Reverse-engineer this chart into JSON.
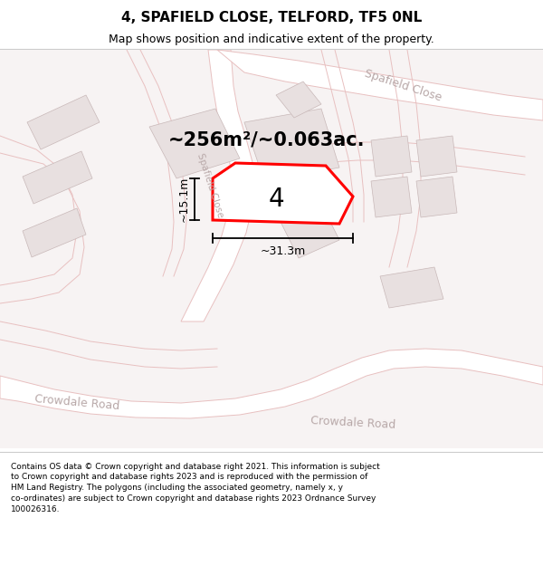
{
  "title": "4, SPAFIELD CLOSE, TELFORD, TF5 0NL",
  "subtitle": "Map shows position and indicative extent of the property.",
  "area_label": "~256m²/~0.063ac.",
  "plot_number": "4",
  "width_label": "~31.3m",
  "height_label": "~15.1m",
  "footer": "Contains OS data © Crown copyright and database right 2021. This information is subject to Crown copyright and database rights 2023 and is reproduced with the permission of HM Land Registry. The polygons (including the associated geometry, namely x, y co-ordinates) are subject to Crown copyright and database rights 2023 Ordnance Survey 100026316.",
  "map_bg": "#f7f3f3",
  "road_color": "#ffffff",
  "road_outline": "#e8c0c0",
  "building_color": "#e8e0e0",
  "building_outline": "#c8b8b8",
  "plot_fill": "#ffffff",
  "plot_outline": "#ff0000",
  "label_color": "#b8a8a8",
  "title_color": "#000000",
  "footer_color": "#000000",
  "figsize": [
    6.0,
    6.25
  ],
  "dpi": 100,
  "title_fontsize": 11,
  "subtitle_fontsize": 9,
  "area_fontsize": 15,
  "plot_num_fontsize": 20,
  "dim_fontsize": 9,
  "road_label_fontsize": 9,
  "footer_fontsize": 6.5
}
